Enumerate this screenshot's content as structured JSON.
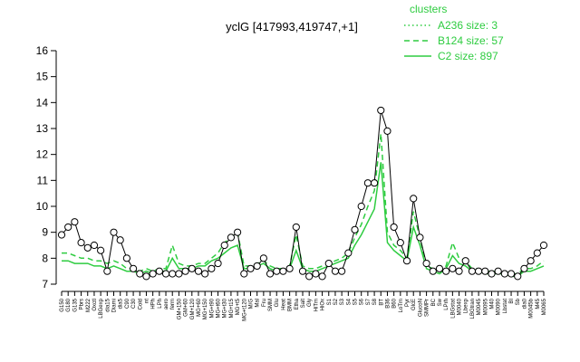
{
  "chart_data": {
    "type": "line",
    "title": "yclG [417993,419747,+1]",
    "xlabel": "",
    "ylabel": "",
    "ylim": [
      7,
      16
    ],
    "yticks": [
      7,
      8,
      9,
      10,
      11,
      12,
      13,
      14,
      15,
      16
    ],
    "grid": false,
    "legend_position": "top-right",
    "legend_title": "clusters",
    "legend": [
      {
        "label": "A236 size: 3",
        "style": "dotted"
      },
      {
        "label": "B124 size: 57",
        "style": "dashed"
      },
      {
        "label": "C2 size: 897",
        "style": "solid"
      }
    ],
    "colors": {
      "series": "#2ecc40",
      "points": "#000000",
      "point_fill": "#ffffff"
    },
    "categories": [
      "G150",
      "G180",
      "G135",
      "Pbrs",
      "M222",
      "Oxctl",
      "LBGexp",
      "dia15",
      "Diami",
      "dia5",
      "C90",
      "C30",
      "Cold",
      "nt",
      "HPh",
      "LPh",
      "aero",
      "ferm",
      "GM+150",
      "GM+60",
      "GM+120",
      "MG+60",
      "MG+150",
      "MG+t90",
      "MG+t60",
      "MG+t30",
      "MG+t15",
      "MG+t5",
      "MG+t120",
      "M/G",
      "Mal",
      "Fru",
      "SMM",
      "Glu",
      "Heat",
      "BMM",
      "Etha",
      "Salt",
      "Gly",
      "HiTm",
      "HiOx",
      "S1",
      "S2",
      "S3",
      "S4",
      "S5",
      "S6",
      "S7",
      "S8",
      "BT",
      "B36",
      "B60",
      "LoTm",
      "Pyr",
      "GlcE",
      "GlucoN",
      "SMMPr",
      "BC",
      "Sw",
      "LPrh",
      "LBGstat",
      "M0040",
      "Lbexp",
      "LBGtran",
      "M0045",
      "M0095",
      "M40",
      "M0090",
      "Lbstat",
      "BI",
      "Sb",
      "dia0",
      "M0045b",
      "M45",
      "M0065"
    ],
    "series": [
      {
        "values": [
          8.2,
          8.2,
          8.1,
          8.0,
          8.0,
          7.9,
          7.9,
          7.8,
          7.9,
          7.8,
          7.6,
          7.6,
          7.5,
          7.6,
          7.5,
          7.6,
          7.6,
          8.5,
          7.8,
          7.7,
          7.7,
          7.8,
          7.8,
          8.0,
          8.2,
          8.6,
          8.8,
          9.0,
          7.7,
          7.7,
          7.8,
          7.9,
          7.7,
          7.6,
          7.6,
          7.7,
          8.9,
          7.7,
          7.6,
          7.6,
          7.7,
          7.8,
          7.9,
          8.0,
          8.2,
          8.8,
          9.3,
          10.0,
          10.6,
          12.8,
          9.0,
          8.5,
          8.3,
          8.0,
          9.8,
          8.8,
          7.7,
          7.6,
          7.5,
          7.7,
          8.6,
          8.0,
          7.9,
          7.6,
          7.6,
          7.5,
          7.5,
          7.5,
          7.5,
          7.4,
          7.4,
          7.6,
          7.6,
          7.7,
          7.9
        ]
      },
      {
        "values": [
          7.9,
          7.9,
          7.8,
          7.8,
          7.8,
          7.7,
          7.7,
          7.6,
          7.7,
          7.6,
          7.5,
          7.5,
          7.4,
          7.5,
          7.4,
          7.5,
          7.5,
          8.0,
          7.6,
          7.6,
          7.6,
          7.7,
          7.7,
          7.9,
          8.0,
          8.2,
          8.4,
          8.5,
          7.6,
          7.6,
          7.7,
          7.8,
          7.6,
          7.5,
          7.5,
          7.6,
          8.3,
          7.6,
          7.5,
          7.5,
          7.6,
          7.7,
          7.8,
          7.9,
          8.0,
          8.5,
          8.9,
          9.4,
          9.9,
          11.7,
          8.6,
          8.3,
          8.1,
          7.9,
          9.2,
          8.5,
          7.6,
          7.5,
          7.4,
          7.6,
          8.1,
          7.8,
          7.7,
          7.5,
          7.5,
          7.4,
          7.4,
          7.4,
          7.4,
          7.3,
          7.3,
          7.5,
          7.5,
          7.6,
          7.7
        ]
      },
      {
        "values": [
          8.9,
          9.2,
          9.4,
          8.6,
          8.4,
          8.5,
          8.3,
          7.5,
          9.0,
          8.7,
          8.0,
          7.6,
          7.4,
          7.3,
          7.4,
          7.5,
          7.4,
          7.4,
          7.4,
          7.5,
          7.6,
          7.5,
          7.4,
          7.6,
          7.8,
          8.5,
          8.8,
          9.0,
          7.4,
          7.6,
          7.7,
          8.0,
          7.4,
          7.5,
          7.5,
          7.6,
          9.2,
          7.5,
          7.3,
          7.4,
          7.3,
          7.8,
          7.5,
          7.5,
          8.2,
          9.1,
          10.0,
          10.9,
          10.9,
          13.7,
          12.9,
          9.2,
          8.6,
          7.9,
          10.3,
          8.8,
          7.8,
          7.5,
          7.6,
          7.5,
          7.6,
          7.5,
          7.9,
          7.5,
          7.5,
          7.5,
          7.4,
          7.5,
          7.4,
          7.4,
          7.3,
          7.6,
          7.9,
          8.2,
          8.5
        ]
      }
    ]
  }
}
